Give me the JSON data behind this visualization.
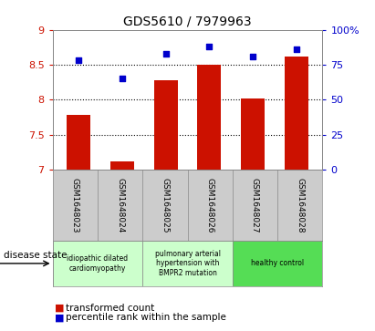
{
  "title": "GDS5610 / 7979963",
  "samples": [
    "GSM1648023",
    "GSM1648024",
    "GSM1648025",
    "GSM1648026",
    "GSM1648027",
    "GSM1648028"
  ],
  "bar_values": [
    7.78,
    7.12,
    8.28,
    8.5,
    8.01,
    8.62
  ],
  "scatter_pct": [
    78,
    65,
    83,
    88,
    81,
    86
  ],
  "bar_color": "#cc1100",
  "scatter_color": "#0000cc",
  "ylim_left": [
    7.0,
    9.0
  ],
  "ylim_right": [
    0,
    100
  ],
  "yticks_left": [
    7.0,
    7.5,
    8.0,
    8.5,
    9.0
  ],
  "yticks_right": [
    0,
    25,
    50,
    75,
    100
  ],
  "ytick_labels_left": [
    "7",
    "7.5",
    "8",
    "8.5",
    "9"
  ],
  "ytick_labels_right": [
    "0",
    "25",
    "50",
    "75",
    "100%"
  ],
  "hlines": [
    7.5,
    8.0,
    8.5
  ],
  "disease_groups": [
    {
      "label": "idiopathic dilated\ncardiomyopathy",
      "span": [
        0,
        2
      ],
      "color": "#ccffcc"
    },
    {
      "label": "pulmonary arterial\nhypertension with\nBMPR2 mutation",
      "span": [
        2,
        4
      ],
      "color": "#ccffcc"
    },
    {
      "label": "healthy control",
      "span": [
        4,
        6
      ],
      "color": "#55dd55"
    }
  ],
  "legend_bar_label": "transformed count",
  "legend_scatter_label": "percentile rank within the sample",
  "disease_state_label": "disease state",
  "bar_width": 0.55,
  "sample_bg": "#cccccc",
  "spine_color": "#888888"
}
